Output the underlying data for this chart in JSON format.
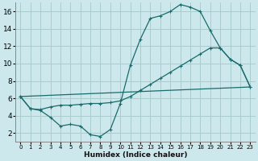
{
  "xlabel": "Humidex (Indice chaleur)",
  "ylabel": "",
  "bg_color": "#cce8ec",
  "grid_color": "#aacccc",
  "line_color": "#1a6b6b",
  "xlim": [
    -0.5,
    23.5
  ],
  "ylim": [
    1,
    17
  ],
  "xticks": [
    0,
    1,
    2,
    3,
    4,
    5,
    6,
    7,
    8,
    9,
    10,
    11,
    12,
    13,
    14,
    15,
    16,
    17,
    18,
    19,
    20,
    21,
    22,
    23
  ],
  "yticks": [
    2,
    4,
    6,
    8,
    10,
    12,
    14,
    16
  ],
  "line1_x": [
    0,
    1,
    2,
    3,
    4,
    5,
    6,
    7,
    8,
    9,
    10,
    11,
    12,
    13,
    14,
    15,
    16,
    17,
    18,
    19,
    20,
    21,
    22,
    23
  ],
  "line1_y": [
    6.2,
    4.8,
    4.6,
    3.8,
    2.8,
    3.0,
    2.8,
    1.8,
    1.6,
    2.4,
    5.4,
    9.8,
    12.8,
    15.2,
    15.5,
    16.0,
    16.8,
    16.5,
    16.0,
    13.8,
    11.8,
    10.5,
    9.8,
    7.3
  ],
  "line2_x": [
    0,
    1,
    2,
    3,
    4,
    5,
    6,
    7,
    8,
    9,
    10,
    11,
    12,
    13,
    14,
    15,
    16,
    17,
    18,
    19,
    20,
    21,
    22,
    23
  ],
  "line2_y": [
    6.2,
    4.8,
    4.7,
    5.0,
    5.2,
    5.2,
    5.3,
    5.4,
    5.4,
    5.5,
    5.7,
    6.2,
    6.9,
    7.6,
    8.3,
    9.0,
    9.7,
    10.4,
    11.1,
    11.8,
    11.8,
    10.5,
    9.8,
    7.3
  ],
  "line3_x": [
    0,
    23
  ],
  "line3_y": [
    6.2,
    7.3
  ]
}
